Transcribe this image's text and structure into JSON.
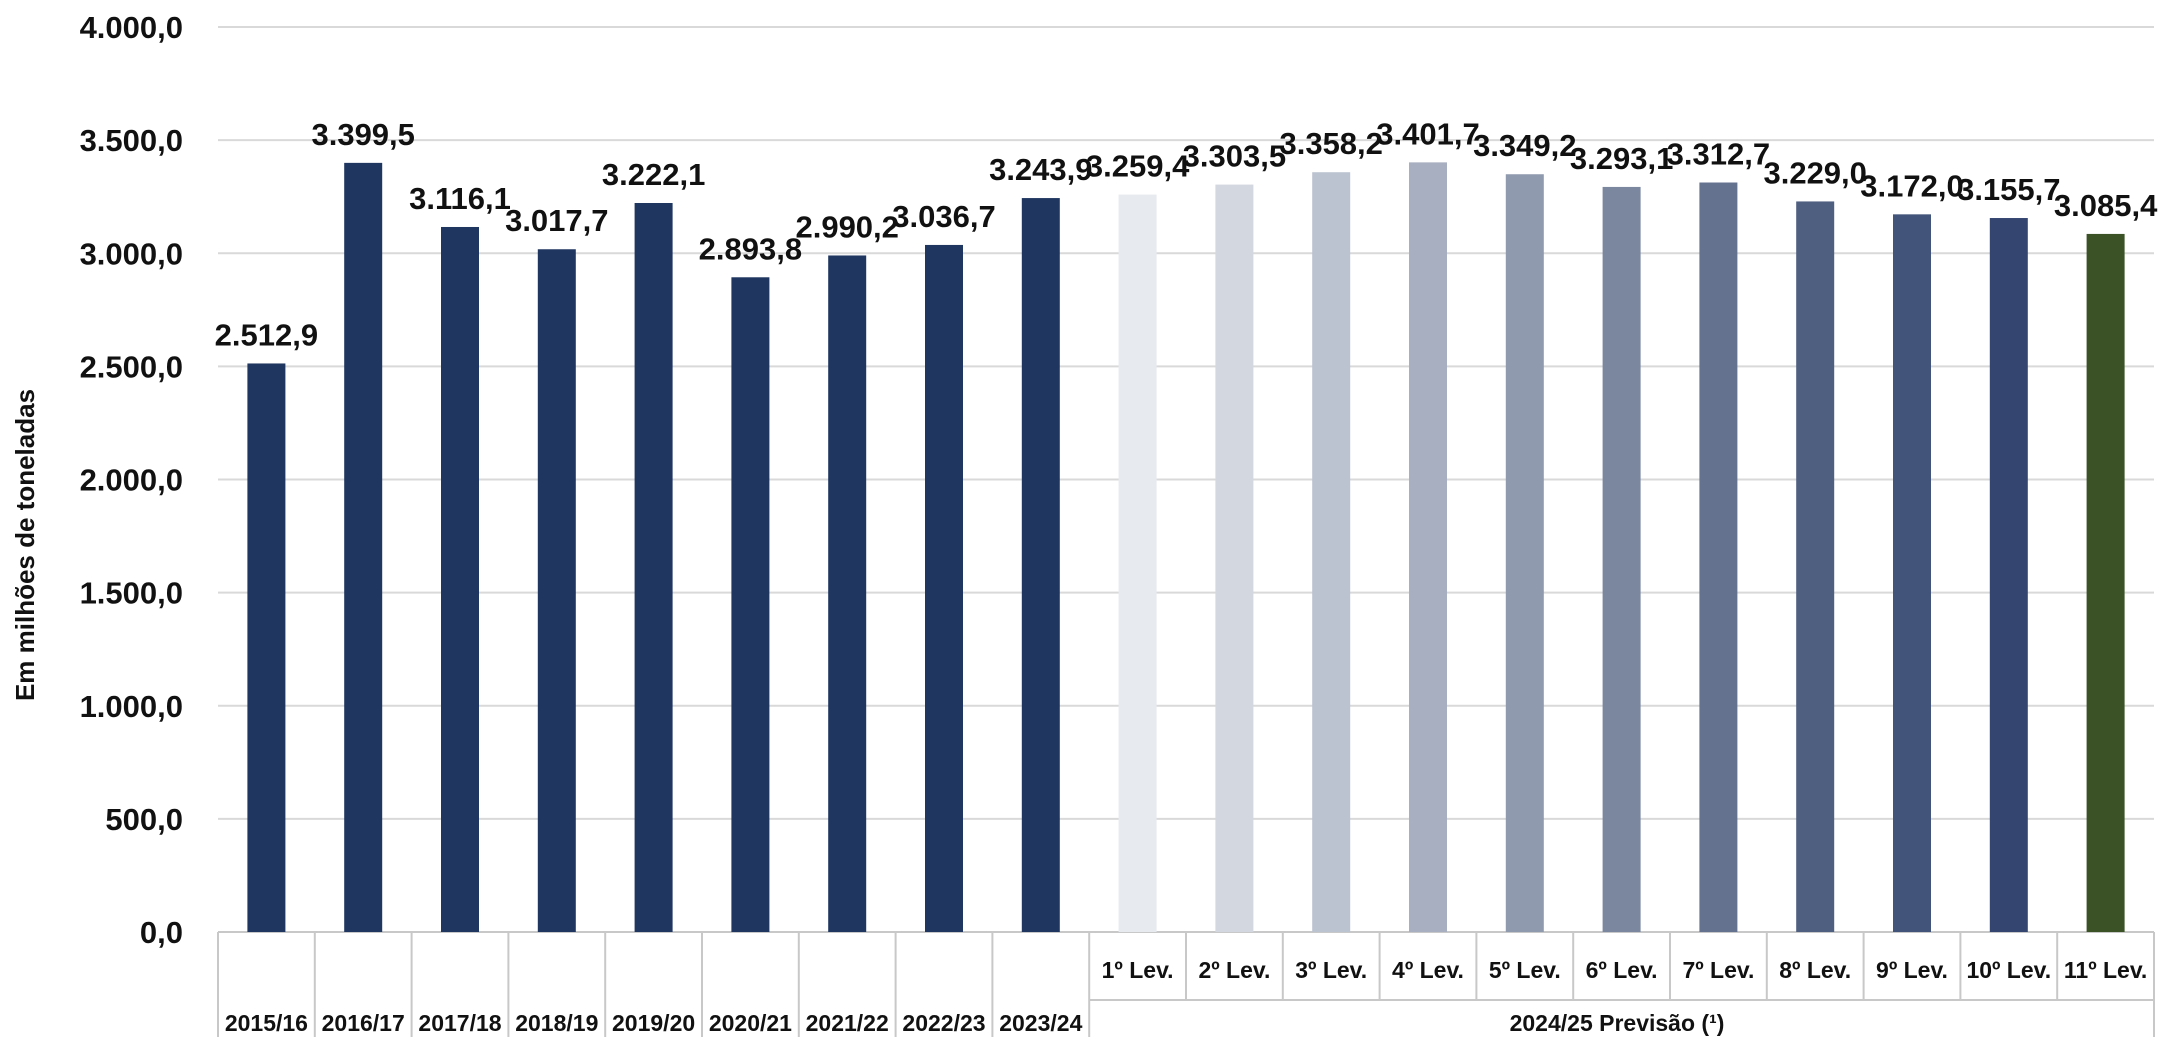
{
  "chart_data": {
    "type": "bar",
    "ylabel": "Em milhões de toneladas",
    "ylim": [
      0,
      4000
    ],
    "yticks": [
      {
        "value": 0,
        "label": "0,0"
      },
      {
        "value": 500,
        "label": "500,0"
      },
      {
        "value": 1000,
        "label": "1.000,0"
      },
      {
        "value": 1500,
        "label": "1.500,0"
      },
      {
        "value": 2000,
        "label": "2.000,0"
      },
      {
        "value": 2500,
        "label": "2.500,0"
      },
      {
        "value": 3000,
        "label": "3.000,0"
      },
      {
        "value": 3500,
        "label": "3.500,0"
      },
      {
        "value": 4000,
        "label": "4.000,0"
      }
    ],
    "grid": true,
    "legend": "none",
    "group_label": "2024/25 Previsão (¹)",
    "bars": [
      {
        "category": "2015/16",
        "value": 2512.9,
        "label": "2.512,9",
        "color": "#1f3660"
      },
      {
        "category": "2016/17",
        "value": 3399.5,
        "label": "3.399,5",
        "color": "#1f3660"
      },
      {
        "category": "2017/18",
        "value": 3116.1,
        "label": "3.116,1",
        "color": "#1f3660"
      },
      {
        "category": "2018/19",
        "value": 3017.7,
        "label": "3.017,7",
        "color": "#1f3660"
      },
      {
        "category": "2019/20",
        "value": 3222.1,
        "label": "3.222,1",
        "color": "#1f3660"
      },
      {
        "category": "2020/21",
        "value": 2893.8,
        "label": "2.893,8",
        "color": "#1f3660"
      },
      {
        "category": "2021/22",
        "value": 2990.2,
        "label": "2.990,2",
        "color": "#1f3660"
      },
      {
        "category": "2022/23",
        "value": 3036.7,
        "label": "3.036,7",
        "color": "#1f3660"
      },
      {
        "category": "2023/24",
        "value": 3243.9,
        "label": "3.243,9",
        "color": "#1f3660"
      },
      {
        "category": "1º Lev.",
        "value": 3259.4,
        "label": "3.259,4",
        "color": "#e7eaef"
      },
      {
        "category": "2º Lev.",
        "value": 3303.5,
        "label": "3.303,5",
        "color": "#d3d8e0"
      },
      {
        "category": "3º Lev.",
        "value": 3358.2,
        "label": "3.358,2",
        "color": "#bcc3d0"
      },
      {
        "category": "4º Lev.",
        "value": 3401.7,
        "label": "3.401,7",
        "color": "#a7afc0"
      },
      {
        "category": "5º Lev.",
        "value": 3349.2,
        "label": "3.349,2",
        "color": "#8f9aae"
      },
      {
        "category": "6º Lev.",
        "value": 3293.1,
        "label": "3.293,1",
        "color": "#7b879f"
      },
      {
        "category": "7º Lev.",
        "value": 3312.7,
        "label": "3.312,7",
        "color": "#64728f"
      },
      {
        "category": "8º Lev.",
        "value": 3229.0,
        "label": "3.229,0",
        "color": "#4f5f80"
      },
      {
        "category": "9º Lev.",
        "value": 3172.0,
        "label": "3.172,0",
        "color": "#43547a"
      },
      {
        "category": "10º Lev.",
        "value": 3155.7,
        "label": "3.155,7",
        "color": "#344670"
      },
      {
        "category": "11º Lev.",
        "value": 3085.4,
        "label": "3.085,4",
        "color": "#3a5225"
      }
    ]
  }
}
